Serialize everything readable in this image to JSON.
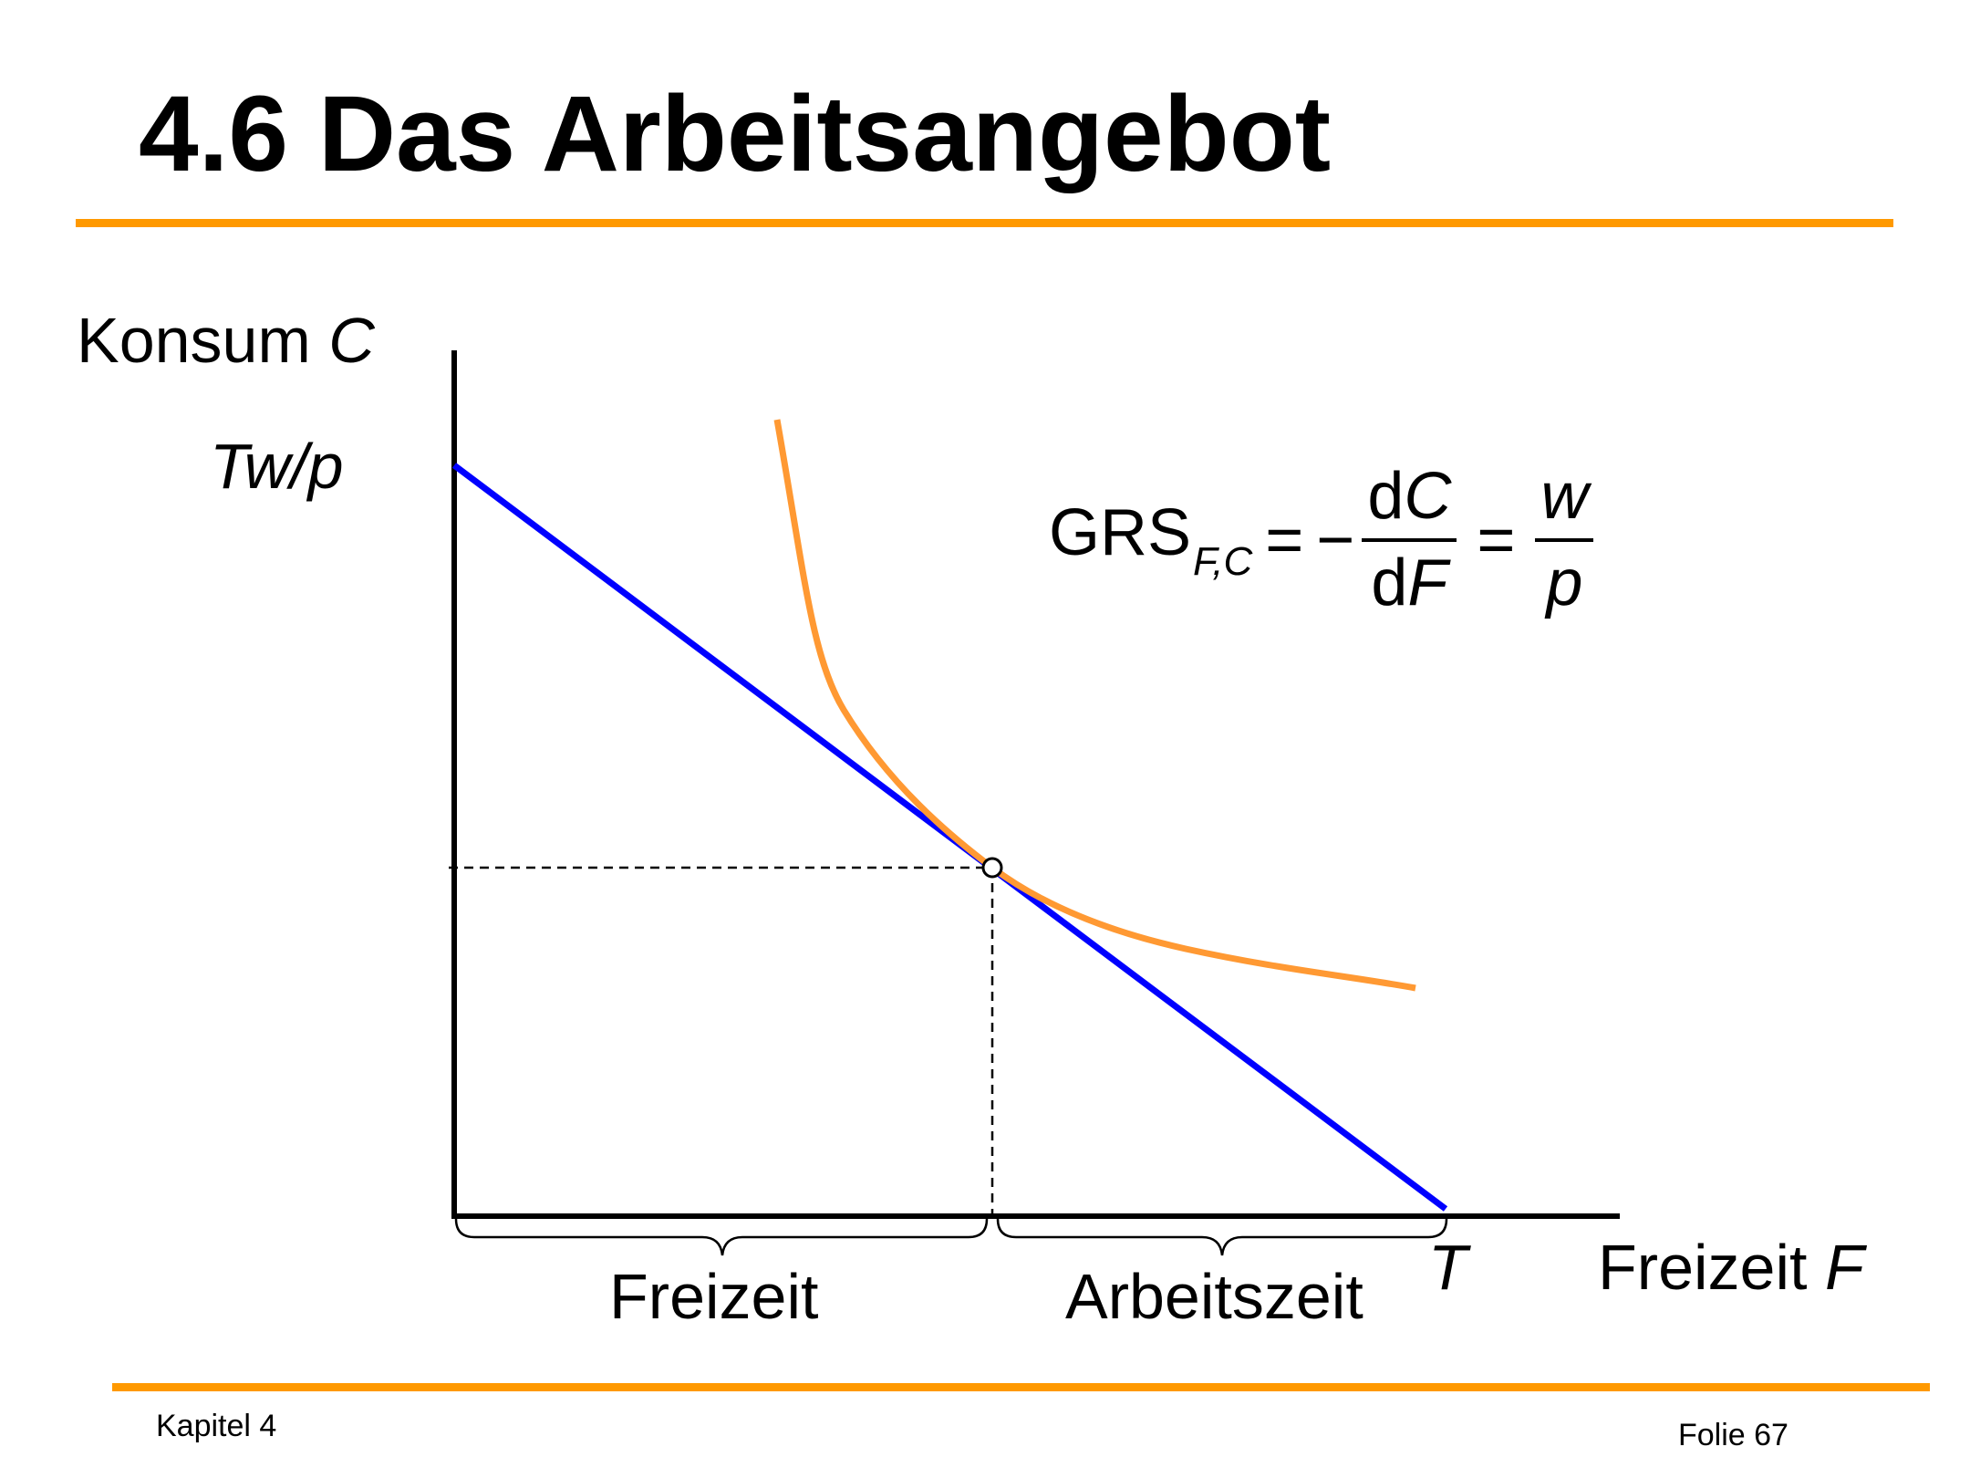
{
  "slide": {
    "title": "4.6 Das Arbeitsangebot",
    "accent_color": "#FF9900",
    "footer_left": "Kapitel 4",
    "footer_right": "Folie 67"
  },
  "diagram": {
    "y_axis_label": "Konsum",
    "y_axis_symbol": "C",
    "y_intercept_label": "Tw/p",
    "x_axis_label": "Freizeit",
    "x_axis_symbol": "F",
    "x_intercept_label": "T",
    "brace_left_label": "Freizeit",
    "brace_right_label": "Arbeitszeit",
    "budget_line_color": "#0000FF",
    "indifference_curve_color": "#FF9933",
    "formula": {
      "lhs": "GRS",
      "lhs_subscript": "F,C",
      "eq": "=",
      "minus": "−",
      "num1_prefix": "d",
      "num1_var": "C",
      "den1_prefix": "d",
      "den1_var": "F",
      "num2": "w",
      "den2": "p"
    }
  }
}
